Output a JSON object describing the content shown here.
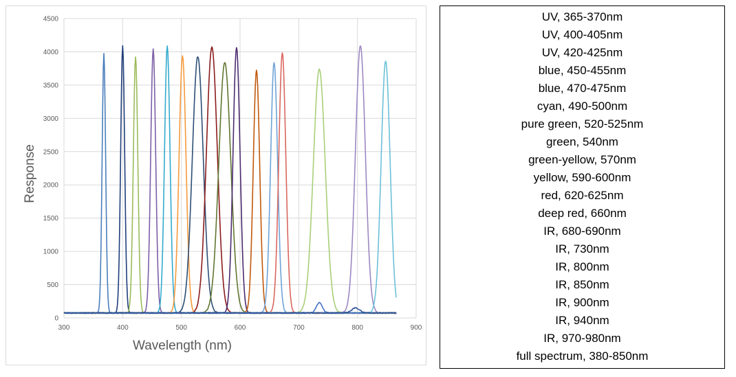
{
  "chart_data": {
    "type": "line",
    "title": "",
    "xlabel": "Wavelength (nm)",
    "ylabel": "Response",
    "xlim": [
      300,
      900
    ],
    "ylim": [
      0,
      4500
    ],
    "xticks": [
      300,
      400,
      500,
      600,
      700,
      800,
      900
    ],
    "yticks": [
      0,
      500,
      1000,
      1500,
      2000,
      2500,
      3000,
      3500,
      4000,
      4500
    ],
    "grid": "vertical and horizontal",
    "baseline": 75,
    "series": [
      {
        "peak_nm": 368,
        "peak_value": 3970,
        "fwhm_nm": 7,
        "color": "#4a7ebb"
      },
      {
        "peak_nm": 400,
        "peak_value": 4090,
        "fwhm_nm": 8,
        "color": "#1f3d7a"
      },
      {
        "peak_nm": 422,
        "peak_value": 3930,
        "fwhm_nm": 9,
        "color": "#9bbb59"
      },
      {
        "peak_nm": 452,
        "peak_value": 4040,
        "fwhm_nm": 10,
        "color": "#7b5ea7"
      },
      {
        "peak_nm": 476,
        "peak_value": 4090,
        "fwhm_nm": 11,
        "color": "#33aacc"
      },
      {
        "peak_nm": 502,
        "peak_value": 3940,
        "fwhm_nm": 14,
        "color": "#f59a3c"
      },
      {
        "peak_nm": 528,
        "peak_value": 3930,
        "fwhm_nm": 22,
        "color": "#2c4d75"
      },
      {
        "peak_nm": 552,
        "peak_value": 4070,
        "fwhm_nm": 22,
        "color": "#8b1a1a"
      },
      {
        "peak_nm": 574,
        "peak_value": 3840,
        "fwhm_nm": 24,
        "color": "#5f7530"
      },
      {
        "peak_nm": 594,
        "peak_value": 4070,
        "fwhm_nm": 14,
        "color": "#4b2a6e"
      },
      {
        "peak_nm": 628,
        "peak_value": 3720,
        "fwhm_nm": 13,
        "color": "#c0580a"
      },
      {
        "peak_nm": 658,
        "peak_value": 3840,
        "fwhm_nm": 14,
        "color": "#6ea3d6"
      },
      {
        "peak_nm": 672,
        "peak_value": 3990,
        "fwhm_nm": 14,
        "color": "#d9665e"
      },
      {
        "peak_nm": 735,
        "peak_value": 3740,
        "fwhm_nm": 24,
        "color": "#a8cf78"
      },
      {
        "peak_nm": 805,
        "peak_value": 4090,
        "fwhm_nm": 20,
        "color": "#9d87c2"
      },
      {
        "peak_nm": 848,
        "peak_value": 3860,
        "fwhm_nm": 18,
        "color": "#6cc0d8"
      },
      {
        "peak_nm": 735,
        "peak_value": 230,
        "fwhm_nm": 12,
        "color": "#4472c4"
      },
      {
        "peak_nm": 797,
        "peak_value": 150,
        "fwhm_nm": 16,
        "color": "#2f5597"
      }
    ]
  },
  "legend": {
    "items": [
      "UV, 365-370nm",
      "UV, 400-405nm",
      "UV, 420-425nm",
      "blue, 450-455nm",
      "blue, 470-475nm",
      "cyan, 490-500nm",
      "pure green, 520-525nm",
      "green, 540nm",
      "green-yellow, 570nm",
      "yellow, 590-600nm",
      "red, 620-625nm",
      "deep red, 660nm",
      "IR, 680-690nm",
      "IR, 730nm",
      "IR, 800nm",
      "IR, 850nm",
      "IR, 900nm",
      "IR, 940nm",
      "IR, 970-980nm",
      "full spectrum, 380-850nm"
    ]
  }
}
